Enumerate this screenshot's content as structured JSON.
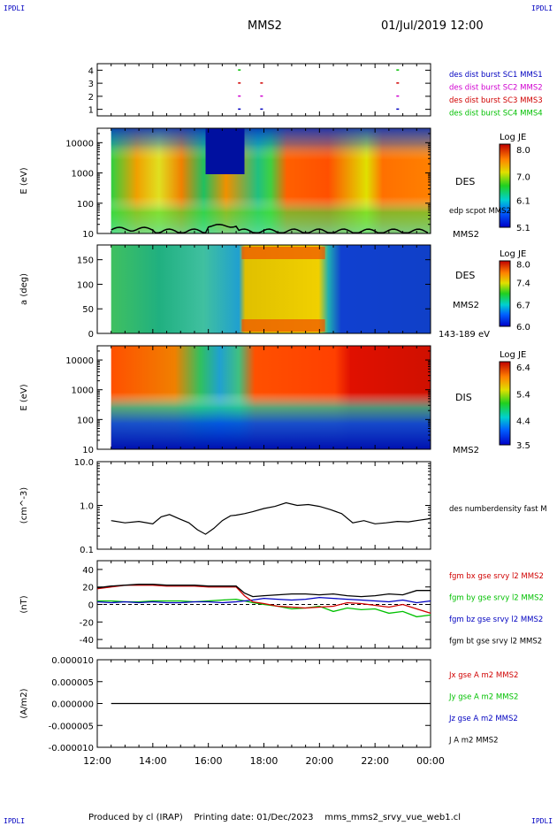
{
  "header": {
    "corner_label": "IPDLI",
    "spacecraft": "MMS2",
    "datetime": "01/Jul/2019 12:00"
  },
  "footer": {
    "text": "Produced by cl (IRAP)    Printing date: 01/Dec/2023    mms_mms2_srvy_vue_web1.cl"
  },
  "colors": {
    "red": "#d00000",
    "green": "#00c000",
    "blue": "#0000c0",
    "magenta": "#d000d0",
    "black": "#000000"
  },
  "chart_data": [
    {
      "type": "scatter",
      "panel": "burst-availability",
      "ylim": [
        0.5,
        4.5
      ],
      "yticks": [
        "1",
        "2",
        "3",
        "4"
      ],
      "legend": [
        {
          "label": "des dist burst SC1 MMS1",
          "color": "#0000c0"
        },
        {
          "label": "des dist burst SC2 MMS2",
          "color": "#d000d0"
        },
        {
          "label": "des dist burst SC3 MMS3",
          "color": "#d00000"
        },
        {
          "label": "des dist burst SC4 MMS4",
          "color": "#00c000"
        }
      ],
      "points": [
        {
          "x": 17.1,
          "y": 4,
          "color": "#00c000"
        },
        {
          "x": 22.8,
          "y": 4,
          "color": "#00c000"
        },
        {
          "x": 17.1,
          "y": 3,
          "color": "#d00000"
        },
        {
          "x": 17.9,
          "y": 3,
          "color": "#d00000"
        },
        {
          "x": 22.8,
          "y": 3,
          "color": "#d00000"
        },
        {
          "x": 17.1,
          "y": 2,
          "color": "#d000d0"
        },
        {
          "x": 17.9,
          "y": 2,
          "color": "#d000d0"
        },
        {
          "x": 22.8,
          "y": 2,
          "color": "#d000d0"
        },
        {
          "x": 17.1,
          "y": 1,
          "color": "#0000c0"
        },
        {
          "x": 17.9,
          "y": 1,
          "color": "#0000c0"
        },
        {
          "x": 22.8,
          "y": 1,
          "color": "#0000c0"
        }
      ]
    },
    {
      "type": "heatmap",
      "panel": "des-energy-spectrogram",
      "ylabel": "E (eV)",
      "yscale": "log",
      "ylim": [
        10,
        30000
      ],
      "yticks": [
        "10",
        "100",
        "1000",
        "10000"
      ],
      "label": "DES",
      "overlay_label": "edp scpot MMS2",
      "sc_label": "MMS2",
      "colorbar": {
        "title": "Log JE",
        "min": 5.1,
        "max": 8.2,
        "ticks": [
          "8.0",
          "7.0",
          "6.1",
          "5.1"
        ]
      }
    },
    {
      "type": "heatmap",
      "panel": "des-pitch-angle",
      "ylabel": "a (deg)",
      "ylim": [
        0,
        180
      ],
      "yticks": [
        "0",
        "50",
        "100",
        "150"
      ],
      "label": "DES",
      "sc_label": "MMS2",
      "energy_label": "143-189 eV",
      "colorbar": {
        "title": "Log JE",
        "min": 6.0,
        "max": 8.1,
        "ticks": [
          "8.0",
          "7.4",
          "6.7",
          "6.0"
        ]
      }
    },
    {
      "type": "heatmap",
      "panel": "dis-energy-spectrogram",
      "ylabel": "E (eV)",
      "yscale": "log",
      "ylim": [
        10,
        30000
      ],
      "yticks": [
        "10",
        "100",
        "1000",
        "10000"
      ],
      "label": "DIS",
      "sc_label": "MMS2",
      "colorbar": {
        "title": "Log JE",
        "min": 3.5,
        "max": 6.6,
        "ticks": [
          "6.4",
          "5.4",
          "4.4",
          "3.5"
        ]
      }
    },
    {
      "type": "line",
      "panel": "density",
      "ylabel": "(cm^-3)",
      "yscale": "log",
      "ylim": [
        0.1,
        10.0
      ],
      "yticks": [
        "0.1",
        "1.0",
        "10.0"
      ],
      "series": [
        {
          "name": "des numberdensity fast M",
          "color": "#000000",
          "x": [
            12.5,
            13.0,
            13.5,
            14.0,
            14.3,
            14.6,
            15.0,
            15.3,
            15.6,
            15.9,
            16.2,
            16.5,
            16.8,
            17.0,
            17.3,
            17.6,
            18.0,
            18.4,
            18.8,
            19.2,
            19.6,
            20.0,
            20.4,
            20.8,
            21.2,
            21.6,
            22.0,
            22.4,
            22.8,
            23.2,
            23.6,
            24.0
          ],
          "values": [
            0.45,
            0.4,
            0.43,
            0.38,
            0.55,
            0.62,
            0.48,
            0.4,
            0.28,
            0.22,
            0.3,
            0.45,
            0.58,
            0.6,
            0.65,
            0.72,
            0.85,
            0.95,
            1.15,
            1.0,
            1.05,
            0.95,
            0.8,
            0.65,
            0.4,
            0.45,
            0.38,
            0.4,
            0.43,
            0.42,
            0.46,
            0.5
          ]
        }
      ]
    },
    {
      "type": "line",
      "panel": "magnetic-field",
      "ylabel": "(nT)",
      "ylim": [
        -50,
        50
      ],
      "yticks": [
        "-40",
        "-20",
        "0",
        "20",
        "40"
      ],
      "x": [
        12.0,
        12.5,
        13.0,
        13.5,
        14.0,
        14.5,
        15.0,
        15.5,
        16.0,
        16.5,
        17.0,
        17.3,
        17.6,
        18.0,
        18.5,
        19.0,
        19.5,
        20.0,
        20.5,
        21.0,
        21.5,
        22.0,
        22.5,
        23.0,
        23.5,
        24.0
      ],
      "series": [
        {
          "name": "fgm bx gse srvy l2 MMS2",
          "color": "#d00000",
          "values": [
            18,
            20,
            22,
            22,
            22,
            21,
            21,
            21,
            20,
            20,
            20,
            10,
            3,
            1,
            -2,
            -3,
            -4,
            -3,
            -2,
            2,
            1,
            -1,
            -3,
            0,
            -5,
            -10
          ]
        },
        {
          "name": "fgm by gse srvy l2 MMS2",
          "color": "#00c000",
          "values": [
            4,
            4,
            3,
            3,
            4,
            4,
            4,
            3,
            4,
            5,
            6,
            4,
            2,
            0,
            -2,
            -5,
            -4,
            -2,
            -8,
            -4,
            -6,
            -5,
            -10,
            -8,
            -14,
            -12
          ]
        },
        {
          "name": "fgm bz gse srvy l2 MMS2",
          "color": "#0000c0",
          "values": [
            3,
            2,
            3,
            2,
            3,
            2,
            2,
            3,
            3,
            2,
            3,
            4,
            5,
            7,
            6,
            5,
            6,
            8,
            7,
            6,
            5,
            4,
            3,
            5,
            2,
            4
          ]
        },
        {
          "name": "fgm bt gse srvy l2 MMS2",
          "color": "#000000",
          "values": [
            19,
            21,
            22,
            23,
            23,
            22,
            22,
            22,
            21,
            21,
            21,
            13,
            9,
            10,
            11,
            12,
            12,
            11,
            12,
            10,
            9,
            10,
            12,
            11,
            16,
            16
          ]
        }
      ]
    },
    {
      "type": "line",
      "panel": "current-density",
      "ylabel": "(A/m2)",
      "ylim": [
        -0.0001,
        0.0001
      ],
      "yticks": [
        "-0.000010",
        "-0.000005",
        "0.000000",
        "0.000005",
        "0.000010"
      ],
      "series": [
        {
          "name": "Jx gse A m2 MMS2",
          "color": "#d00000"
        },
        {
          "name": "Jy gse A m2 MMS2",
          "color": "#00c000"
        },
        {
          "name": "Jz gse A m2 MMS2",
          "color": "#0000c0"
        },
        {
          "name": "J A m2 MMS2",
          "color": "#000000",
          "x": [
            12.5,
            24.0
          ],
          "values": [
            0,
            0
          ]
        }
      ]
    }
  ],
  "time_axis": {
    "range": [
      12,
      24
    ],
    "ticks": [
      "12:00",
      "14:00",
      "16:00",
      "18:00",
      "20:00",
      "22:00",
      "00:00"
    ]
  }
}
